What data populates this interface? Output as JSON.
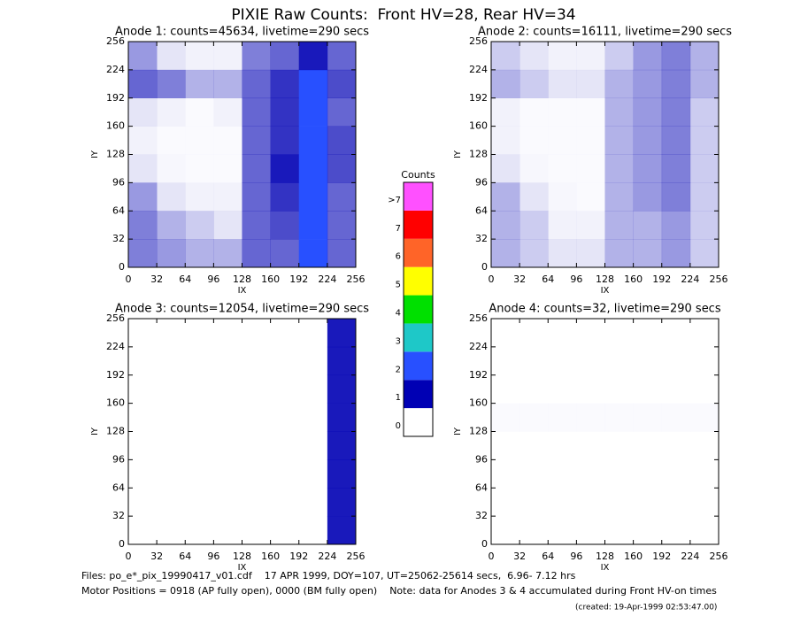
{
  "title": "PIXIE Raw Counts:  Front HV=28, Rear HV=34",
  "chart_data": [
    {
      "type": "heatmap",
      "title": "Anode 1: counts=45634, livetime=290 secs",
      "xlabel": "IX",
      "ylabel": "IY",
      "xlim": [
        0,
        256
      ],
      "ylim": [
        0,
        256
      ],
      "xticks": [
        0,
        32,
        64,
        96,
        128,
        160,
        192,
        224,
        256
      ],
      "yticks": [
        0,
        32,
        64,
        96,
        128,
        160,
        192,
        224,
        256
      ],
      "z": [
        [
          0.5,
          0.4,
          0.3,
          0.3,
          0.6,
          0.6,
          1.2,
          0.6
        ],
        [
          0.5,
          0.3,
          0.2,
          0.1,
          0.6,
          0.7,
          1.4,
          0.6
        ],
        [
          0.4,
          0.1,
          0.05,
          0.05,
          0.6,
          0.8,
          1.6,
          0.6
        ],
        [
          0.1,
          0.03,
          0.02,
          0.02,
          0.6,
          0.9,
          1.8,
          0.7
        ],
        [
          0.05,
          0.02,
          0.02,
          0.02,
          0.6,
          0.8,
          1.6,
          0.7
        ],
        [
          0.1,
          0.05,
          0.02,
          0.05,
          0.6,
          0.8,
          1.5,
          0.6
        ],
        [
          0.6,
          0.5,
          0.3,
          0.3,
          0.6,
          0.8,
          1.5,
          0.7
        ],
        [
          0.4,
          0.1,
          0.05,
          0.05,
          0.5,
          0.6,
          0.9,
          0.6
        ]
      ]
    },
    {
      "type": "heatmap",
      "title": "Anode 2: counts=16111, livetime=290 secs",
      "xlabel": "IX",
      "ylabel": "IY",
      "xlim": [
        0,
        256
      ],
      "ylim": [
        0,
        256
      ],
      "xticks": [
        0,
        32,
        64,
        96,
        128,
        160,
        192,
        224,
        256
      ],
      "yticks": [
        0,
        32,
        64,
        96,
        128,
        160,
        192,
        224,
        256
      ],
      "z": [
        [
          0.3,
          0.2,
          0.1,
          0.1,
          0.3,
          0.3,
          0.4,
          0.2
        ],
        [
          0.3,
          0.2,
          0.05,
          0.05,
          0.3,
          0.3,
          0.4,
          0.2
        ],
        [
          0.3,
          0.1,
          0.03,
          0.02,
          0.3,
          0.4,
          0.5,
          0.2
        ],
        [
          0.1,
          0.03,
          0.02,
          0.02,
          0.3,
          0.4,
          0.5,
          0.2
        ],
        [
          0.05,
          0.02,
          0.02,
          0.02,
          0.3,
          0.4,
          0.5,
          0.2
        ],
        [
          0.05,
          0.02,
          0.02,
          0.02,
          0.3,
          0.4,
          0.5,
          0.2
        ],
        [
          0.3,
          0.2,
          0.1,
          0.1,
          0.3,
          0.4,
          0.5,
          0.3
        ],
        [
          0.2,
          0.1,
          0.05,
          0.05,
          0.2,
          0.4,
          0.5,
          0.3
        ]
      ]
    },
    {
      "type": "heatmap",
      "title": "Anode 3: counts=12054, livetime=290 secs",
      "xlabel": "IX",
      "ylabel": "IY",
      "xlim": [
        0,
        256
      ],
      "ylim": [
        0,
        256
      ],
      "xticks": [
        0,
        32,
        64,
        96,
        128,
        160,
        192,
        224,
        256
      ],
      "yticks": [
        0,
        32,
        64,
        96,
        128,
        160,
        192,
        224,
        256
      ],
      "z": [
        [
          0,
          0,
          0,
          0,
          0,
          0,
          0,
          0.9
        ],
        [
          0,
          0,
          0,
          0,
          0,
          0,
          0,
          0.9
        ],
        [
          0,
          0,
          0,
          0,
          0,
          0,
          0,
          0.9
        ],
        [
          0,
          0,
          0,
          0,
          0,
          0,
          0,
          0.9
        ],
        [
          0,
          0,
          0,
          0,
          0,
          0,
          0,
          0.9
        ],
        [
          0,
          0,
          0,
          0,
          0,
          0,
          0,
          0.9
        ],
        [
          0,
          0,
          0,
          0,
          0,
          0,
          0,
          0.9
        ],
        [
          0,
          0,
          0,
          0,
          0,
          0,
          0,
          0.9
        ]
      ]
    },
    {
      "type": "heatmap",
      "title": "Anode 4: counts=32, livetime=290 secs",
      "xlabel": "IX",
      "ylabel": "IY",
      "xlim": [
        0,
        256
      ],
      "ylim": [
        0,
        256
      ],
      "xticks": [
        0,
        32,
        64,
        96,
        128,
        160,
        192,
        224,
        256
      ],
      "yticks": [
        0,
        32,
        64,
        96,
        128,
        160,
        192,
        224,
        256
      ],
      "z": [
        [
          0,
          0,
          0,
          0,
          0,
          0,
          0,
          0
        ],
        [
          0,
          0,
          0,
          0,
          0,
          0,
          0,
          0
        ],
        [
          0,
          0,
          0,
          0,
          0,
          0,
          0,
          0
        ],
        [
          0,
          0,
          0,
          0,
          0,
          0,
          0,
          0
        ],
        [
          0.02,
          0.02,
          0.02,
          0.02,
          0.02,
          0.02,
          0.02,
          0.02
        ],
        [
          0,
          0,
          0,
          0,
          0,
          0,
          0,
          0
        ],
        [
          0,
          0,
          0,
          0,
          0,
          0,
          0,
          0
        ],
        [
          0,
          0,
          0,
          0,
          0,
          0,
          0,
          0
        ]
      ]
    }
  ],
  "colorbar": {
    "title": "Counts",
    "labels": [
      "0",
      "1",
      "2",
      "3",
      "4",
      "5",
      "6",
      "7",
      ">7"
    ],
    "colors": [
      "#ffffff",
      "#0000b4",
      "#2850ff",
      "#1ec8c8",
      "#00e000",
      "#ffff00",
      "#ff6428",
      "#ff0000",
      "#ff50ff"
    ]
  },
  "footer": [
    "Files: po_e*_pix_19990417_v01.cdf    17 APR 1999, DOY=107, UT=25062-25614 secs,  6.96- 7.12 hrs",
    "Motor Positions = 0918 (AP fully open), 0000 (BM fully open)    Note: data for Anodes 3 & 4 accumulated during Front HV-on times",
    "(created: 19-Apr-1999 02:53:47.00)"
  ]
}
